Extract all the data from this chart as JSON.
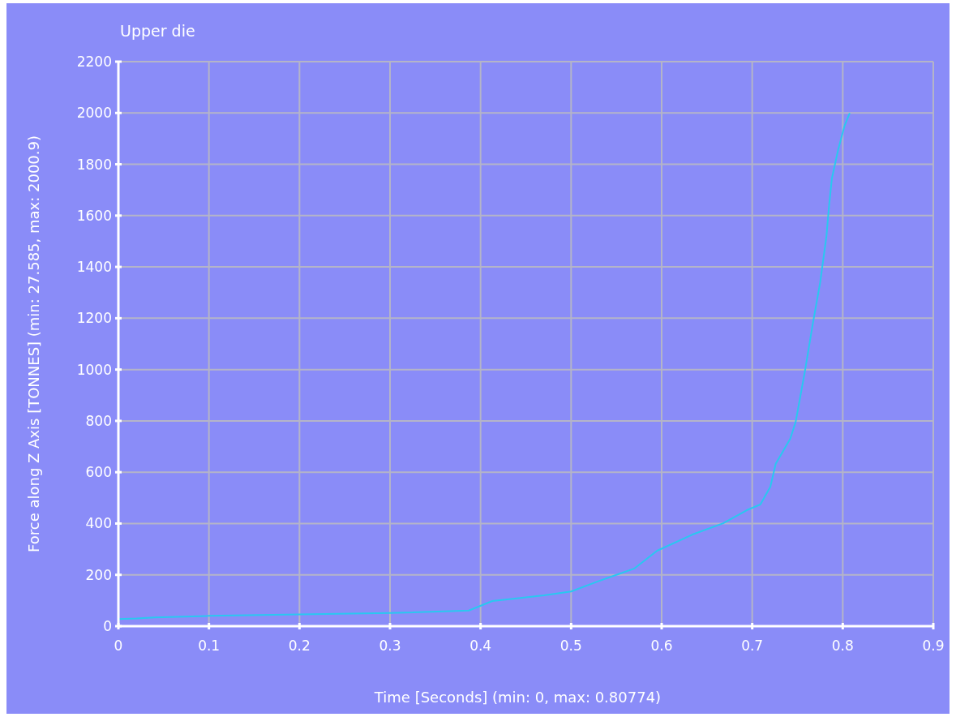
{
  "chart_data": {
    "type": "line",
    "title": "Upper die",
    "xlabel": "Time [Seconds] (min: 0, max: 0.80774)",
    "ylabel": "Force along Z Axis [TONNES] (min: 27.585, max: 2000.9)",
    "xlim": [
      0,
      0.9
    ],
    "xticks": [
      0,
      0.1,
      0.2,
      0.3,
      0.4,
      0.5,
      0.6,
      0.7,
      0.8,
      0.9
    ],
    "ylim": [
      0,
      2200
    ],
    "yticks": [
      0,
      200,
      400,
      600,
      800,
      1000,
      1200,
      1400,
      1600,
      1800,
      2000,
      2200
    ],
    "grid": true,
    "series": [
      {
        "color": "#29c8f0",
        "x": [
          0,
          0.02,
          0.04,
          0.1,
          0.2,
          0.3,
          0.387,
          0.413,
          0.44,
          0.47,
          0.5,
          0.53,
          0.57,
          0.595,
          0.634,
          0.668,
          0.694,
          0.709,
          0.72,
          0.726,
          0.742,
          0.748,
          0.758,
          0.767,
          0.775,
          0.782,
          0.785,
          0.788,
          0.795,
          0.802,
          0.8077
        ],
        "values": [
          28,
          30,
          34,
          40,
          46,
          51,
          61,
          98,
          108,
          120,
          135,
          175,
          225,
          294,
          357,
          401,
          452,
          474,
          543,
          633,
          730,
          796,
          989,
          1180,
          1338,
          1520,
          1643,
          1745,
          1858,
          1950,
          2000
        ]
      }
    ]
  }
}
